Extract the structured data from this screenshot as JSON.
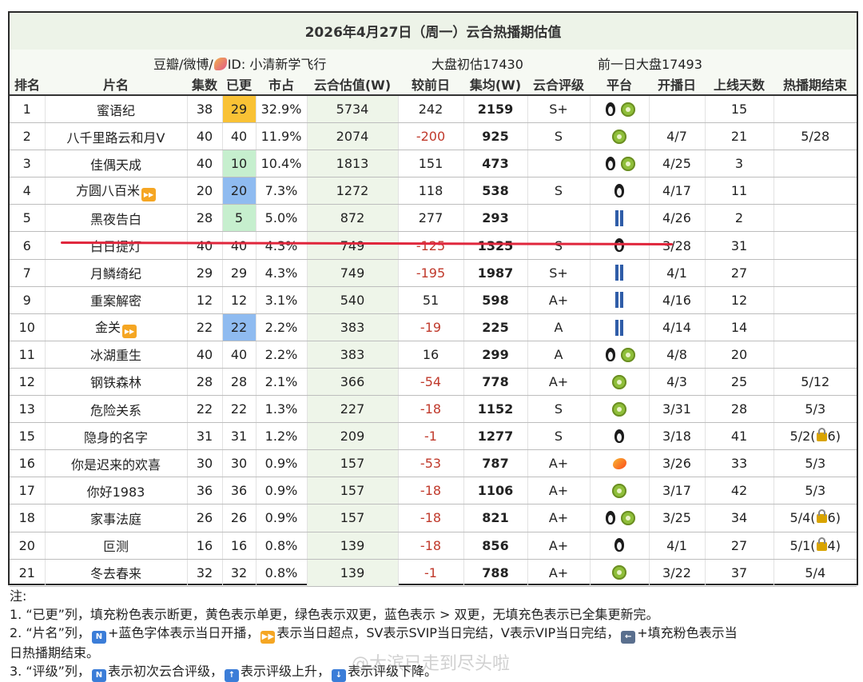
{
  "title": "2026年4月27日（周一）云合热播期估值",
  "subheader": {
    "source_prefix": "豆瓣/微博/",
    "source_suffix": "ID: 小清新学飞行",
    "market_estimate": "大盘初估17430",
    "previous_day": "前一日大盘17493"
  },
  "columns": [
    "排名",
    "片名",
    "集数",
    "已更",
    "市占",
    "云合估值(W)",
    "较前日",
    "集均(W)",
    "云合评级",
    "平台",
    "开播日",
    "上线天数",
    "热播期结束"
  ],
  "rows": [
    {
      "rank": "1",
      "name": "蜜语纪",
      "ff": false,
      "episodes": "38",
      "updated": "29",
      "updated_color": "yellow",
      "share": "32.9%",
      "estimate": "5734",
      "change": "242",
      "avg": "2159",
      "rating": "S+",
      "platforms": [
        "penguin",
        "kiwi"
      ],
      "start": "",
      "days": "15",
      "end": "",
      "end_lock": ""
    },
    {
      "rank": "2",
      "name": "八千里路云和月V",
      "ff": false,
      "episodes": "40",
      "updated": "40",
      "updated_color": "",
      "share": "11.9%",
      "estimate": "2074",
      "change": "-200",
      "avg": "925",
      "rating": "S",
      "platforms": [
        "kiwi"
      ],
      "start": "4/7",
      "days": "21",
      "end": "5/28",
      "end_lock": ""
    },
    {
      "rank": "3",
      "name": "佳偶天成",
      "ff": false,
      "episodes": "40",
      "updated": "10",
      "updated_color": "green",
      "share": "10.4%",
      "estimate": "1813",
      "change": "151",
      "avg": "473",
      "rating": "",
      "platforms": [
        "penguin",
        "kiwi"
      ],
      "start": "4/25",
      "days": "3",
      "end": "",
      "end_lock": ""
    },
    {
      "rank": "4",
      "name": "方圆八百米",
      "ff": true,
      "episodes": "20",
      "updated": "20",
      "updated_color": "blue",
      "share": "7.3%",
      "estimate": "1272",
      "change": "118",
      "avg": "538",
      "rating": "S",
      "platforms": [
        "penguin"
      ],
      "start": "4/17",
      "days": "11",
      "end": "",
      "end_lock": ""
    },
    {
      "rank": "5",
      "name": "黑夜告白",
      "ff": false,
      "episodes": "28",
      "updated": "5",
      "updated_color": "green",
      "share": "5.0%",
      "estimate": "872",
      "change": "277",
      "avg": "293",
      "rating": "",
      "platforms": [
        "jeans"
      ],
      "start": "4/26",
      "days": "2",
      "end": "",
      "end_lock": ""
    },
    {
      "rank": "6",
      "name": "白日提灯",
      "ff": false,
      "episodes": "40",
      "updated": "40",
      "updated_color": "",
      "share": "4.3%",
      "estimate": "749",
      "change": "-125",
      "avg": "1325",
      "rating": "S",
      "platforms": [
        "penguin"
      ],
      "start": "3/28",
      "days": "31",
      "end": "",
      "end_lock": ""
    },
    {
      "rank": "7",
      "name": "月鳞绮纪",
      "ff": false,
      "episodes": "29",
      "updated": "29",
      "updated_color": "",
      "share": "4.3%",
      "estimate": "749",
      "change": "-195",
      "avg": "1987",
      "rating": "S+",
      "platforms": [
        "jeans"
      ],
      "start": "4/1",
      "days": "27",
      "end": "",
      "end_lock": ""
    },
    {
      "rank": "9",
      "name": "重案解密",
      "ff": false,
      "episodes": "12",
      "updated": "12",
      "updated_color": "",
      "share": "3.1%",
      "estimate": "540",
      "change": "51",
      "avg": "598",
      "rating": "A+",
      "platforms": [
        "jeans"
      ],
      "start": "4/16",
      "days": "12",
      "end": "",
      "end_lock": ""
    },
    {
      "rank": "10",
      "name": "金关",
      "ff": true,
      "episodes": "22",
      "updated": "22",
      "updated_color": "blue",
      "share": "2.2%",
      "estimate": "383",
      "change": "-19",
      "avg": "225",
      "rating": "A",
      "platforms": [
        "jeans"
      ],
      "start": "4/14",
      "days": "14",
      "end": "",
      "end_lock": ""
    },
    {
      "rank": "11",
      "name": "冰湖重生",
      "ff": false,
      "episodes": "40",
      "updated": "40",
      "updated_color": "",
      "share": "2.2%",
      "estimate": "383",
      "change": "16",
      "avg": "299",
      "rating": "A",
      "platforms": [
        "penguin",
        "kiwi"
      ],
      "start": "4/8",
      "days": "20",
      "end": "",
      "end_lock": ""
    },
    {
      "rank": "12",
      "name": "钢铁森林",
      "ff": false,
      "episodes": "28",
      "updated": "28",
      "updated_color": "",
      "share": "2.1%",
      "estimate": "366",
      "change": "-54",
      "avg": "778",
      "rating": "A+",
      "platforms": [
        "kiwi"
      ],
      "start": "4/3",
      "days": "25",
      "end": "5/12",
      "end_lock": ""
    },
    {
      "rank": "13",
      "name": "危险关系",
      "ff": false,
      "episodes": "22",
      "updated": "22",
      "updated_color": "",
      "share": "1.3%",
      "estimate": "227",
      "change": "-18",
      "avg": "1152",
      "rating": "S",
      "platforms": [
        "kiwi"
      ],
      "start": "3/31",
      "days": "28",
      "end": "5/3",
      "end_lock": ""
    },
    {
      "rank": "15",
      "name": "隐身的名字",
      "ff": false,
      "episodes": "31",
      "updated": "31",
      "updated_color": "",
      "share": "1.2%",
      "estimate": "209",
      "change": "-1",
      "avg": "1277",
      "rating": "S",
      "platforms": [
        "penguin"
      ],
      "start": "3/18",
      "days": "41",
      "end": "5/2(",
      "end_lock": "6)"
    },
    {
      "rank": "16",
      "name": "你是迟来的欢喜",
      "ff": false,
      "episodes": "30",
      "updated": "30",
      "updated_color": "",
      "share": "0.9%",
      "estimate": "157",
      "change": "-53",
      "avg": "787",
      "rating": "A+",
      "platforms": [
        "mango"
      ],
      "start": "3/26",
      "days": "33",
      "end": "5/3",
      "end_lock": ""
    },
    {
      "rank": "17",
      "name": "你好1983",
      "ff": false,
      "episodes": "36",
      "updated": "36",
      "updated_color": "",
      "share": "0.9%",
      "estimate": "157",
      "change": "-18",
      "avg": "1106",
      "rating": "A+",
      "platforms": [
        "kiwi"
      ],
      "start": "3/17",
      "days": "42",
      "end": "5/3",
      "end_lock": ""
    },
    {
      "rank": "18",
      "name": "家事法庭",
      "ff": false,
      "episodes": "26",
      "updated": "26",
      "updated_color": "",
      "share": "0.9%",
      "estimate": "157",
      "change": "-18",
      "avg": "821",
      "rating": "A+",
      "platforms": [
        "penguin",
        "kiwi"
      ],
      "start": "3/25",
      "days": "34",
      "end": "5/4(",
      "end_lock": "6)"
    },
    {
      "rank": "20",
      "name": "叵测",
      "ff": false,
      "episodes": "16",
      "updated": "16",
      "updated_color": "",
      "share": "0.8%",
      "estimate": "139",
      "change": "-18",
      "avg": "856",
      "rating": "A+",
      "platforms": [
        "penguin"
      ],
      "start": "4/1",
      "days": "27",
      "end": "5/1(",
      "end_lock": "4)"
    },
    {
      "rank": "21",
      "name": "冬去春来",
      "ff": false,
      "episodes": "32",
      "updated": "32",
      "updated_color": "",
      "share": "0.8%",
      "estimate": "139",
      "change": "-1",
      "avg": "788",
      "rating": "A+",
      "platforms": [
        "kiwi"
      ],
      "start": "3/22",
      "days": "37",
      "end": "5/4",
      "end_lock": ""
    }
  ],
  "notes": {
    "heading": "注:",
    "line1": "1. “已更”列，填充粉色表示断更，黄色表示单更，绿色表示双更，蓝色表示 > 双更，无填充色表示已全集更新完。",
    "line2a": "2. “片名”列，",
    "line2b": "+蓝色字体表示当日开播，",
    "line2c": "表示当日超点，SV表示SVIP当日完结，V表示VIP当日完结，",
    "line2d": "+填充粉色表示当",
    "line2e": "日热播期结束。",
    "line3a": "3. “评级”列，",
    "line3b": "表示初次云合评级，",
    "line3c": "表示评级上升，",
    "line3d": "表示评级下降。"
  },
  "watermark": "@大滨已走到尽头啦",
  "colors": {
    "yellow": "#f9c235",
    "green": "#c6efce",
    "blue": "#8fbbf0",
    "negative": "#c0392b",
    "highlight_line": "#e0263c"
  }
}
